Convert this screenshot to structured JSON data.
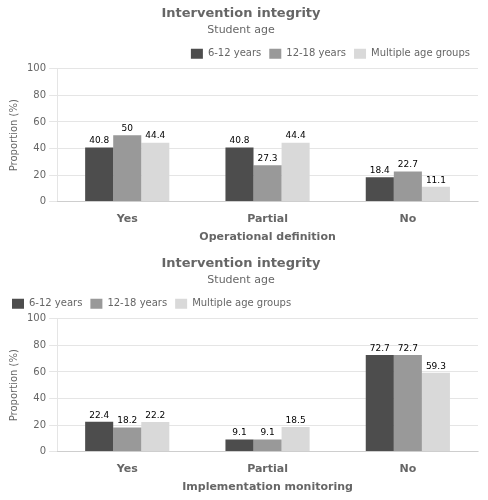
{
  "chart_data": [
    {
      "type": "bar",
      "title": "Intervention integrity",
      "subtitle": "Student age",
      "xlabel": "Operational definition",
      "ylabel": "Proportion (%)",
      "categories": [
        "Yes",
        "Partial",
        "No"
      ],
      "series": [
        {
          "name": "6-12 years",
          "color": "#4d4d4d",
          "values": [
            40.8,
            40.8,
            18.4
          ]
        },
        {
          "name": "12-18 years",
          "color": "#999999",
          "values": [
            50.0,
            27.3,
            22.7
          ]
        },
        {
          "name": "Multiple age groups",
          "color": "#d9d9d9",
          "values": [
            44.4,
            44.4,
            11.1
          ]
        }
      ],
      "ylim": [
        0,
        100
      ],
      "yticks": [
        0,
        20,
        40,
        60,
        80,
        100
      ],
      "grid": true,
      "legend": "upper right",
      "data_labels": true
    },
    {
      "type": "bar",
      "title": "Intervention integrity",
      "subtitle": "Student age",
      "xlabel": "Implementation monitoring",
      "ylabel": "Proportion (%)",
      "categories": [
        "Yes",
        "Partial",
        "No"
      ],
      "series": [
        {
          "name": "6-12 years",
          "color": "#4d4d4d",
          "values": [
            22.4,
            9.1,
            72.7
          ]
        },
        {
          "name": "12-18 years",
          "color": "#999999",
          "values": [
            18.2,
            9.1,
            72.7
          ]
        },
        {
          "name": "Multiple age groups",
          "color": "#d9d9d9",
          "values": [
            22.2,
            18.5,
            59.3
          ]
        }
      ],
      "ylim": [
        0,
        100
      ],
      "yticks": [
        0,
        20,
        40,
        60,
        80,
        100
      ],
      "grid": true,
      "legend": "upper left",
      "data_labels": true
    }
  ]
}
